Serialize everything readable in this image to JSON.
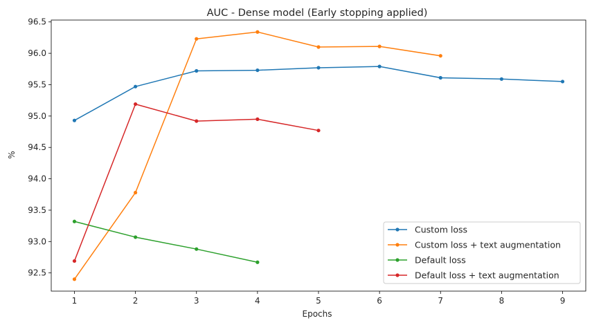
{
  "chart_data": {
    "type": "line",
    "title": "AUC - Dense model (Early stopping applied)",
    "xlabel": "Epochs",
    "ylabel": "%",
    "xlim": [
      0.62,
      9.38
    ],
    "ylim": [
      92.21,
      96.53
    ],
    "xticks": [
      1,
      2,
      3,
      4,
      5,
      6,
      7,
      8,
      9
    ],
    "yticks": [
      92.5,
      93.0,
      93.5,
      94.0,
      94.5,
      95.0,
      95.5,
      96.0,
      96.5
    ],
    "ytick_labels": [
      "92.5",
      "93.0",
      "93.5",
      "94.0",
      "94.5",
      "95.0",
      "95.5",
      "96.0",
      "96.5"
    ],
    "grid": false,
    "legend_position": "bottom-right",
    "series": [
      {
        "name": "Custom loss",
        "color": "#1f77b4",
        "x": [
          1,
          2,
          3,
          4,
          5,
          6,
          7,
          8,
          9
        ],
        "values": [
          94.93,
          95.47,
          95.72,
          95.73,
          95.77,
          95.79,
          95.61,
          95.59,
          95.55
        ]
      },
      {
        "name": "Custom loss + text augmentation",
        "color": "#ff7f0e",
        "x": [
          1,
          2,
          3,
          4,
          5,
          6,
          7
        ],
        "values": [
          92.4,
          93.78,
          96.23,
          96.34,
          96.1,
          96.11,
          95.96
        ]
      },
      {
        "name": "Default loss",
        "color": "#2ca02c",
        "x": [
          1,
          2,
          3,
          4
        ],
        "values": [
          93.32,
          93.07,
          92.88,
          92.67
        ]
      },
      {
        "name": "Default loss + text augmentation",
        "color": "#d62728",
        "x": [
          1,
          2,
          3,
          4,
          5
        ],
        "values": [
          92.69,
          95.19,
          94.92,
          94.95,
          94.77
        ]
      }
    ]
  }
}
